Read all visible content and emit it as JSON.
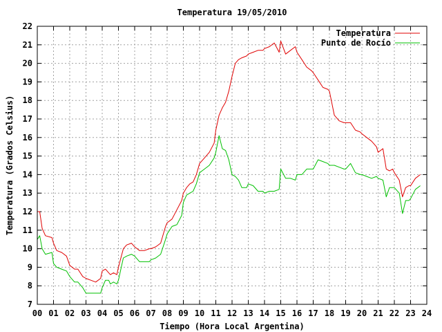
{
  "chart_data": {
    "type": "line",
    "title": "Temperatura 19/05/2010",
    "xlabel": "Tiempo (Hora Local Argentina)",
    "ylabel": "Temperatura (Grados Celsius)",
    "xlim": [
      0,
      24
    ],
    "ylim": [
      7,
      22
    ],
    "x_ticks": [
      "00",
      "01",
      "02",
      "03",
      "04",
      "05",
      "06",
      "07",
      "08",
      "09",
      "10",
      "11",
      "12",
      "13",
      "14",
      "15",
      "16",
      "17",
      "18",
      "19",
      "20",
      "21",
      "22",
      "23",
      "24"
    ],
    "y_ticks": [
      7,
      8,
      9,
      10,
      11,
      12,
      13,
      14,
      15,
      16,
      17,
      18,
      19,
      20,
      21,
      22
    ],
    "grid": true,
    "legend_position": "top-right",
    "series": [
      {
        "name": "Temperatura",
        "color": "#e00000",
        "x": [
          0,
          0.15,
          0.3,
          0.5,
          0.9,
          1.0,
          1.2,
          1.5,
          1.8,
          2.0,
          2.3,
          2.5,
          2.8,
          3.0,
          3.3,
          3.6,
          3.9,
          4.0,
          4.2,
          4.4,
          4.5,
          4.7,
          4.9,
          5.0,
          5.15,
          5.3,
          5.5,
          5.8,
          6.0,
          6.3,
          6.6,
          6.9,
          7.0,
          7.3,
          7.6,
          7.9,
          8.0,
          8.3,
          8.6,
          8.9,
          9.0,
          9.2,
          9.4,
          9.6,
          9.8,
          10.0,
          10.3,
          10.6,
          10.9,
          11.0,
          11.2,
          11.4,
          11.6,
          11.8,
          12.0,
          12.2,
          12.4,
          12.6,
          12.9,
          13.0,
          13.3,
          13.6,
          13.9,
          14.0,
          14.3,
          14.6,
          14.9,
          15.0,
          15.3,
          15.6,
          15.9,
          16.0,
          16.3,
          16.6,
          16.9,
          17.0,
          17.3,
          17.6,
          17.9,
          18.0,
          18.3,
          18.6,
          18.9,
          19.0,
          19.3,
          19.6,
          19.9,
          20.0,
          20.3,
          20.6,
          20.9,
          21.0,
          21.3,
          21.5,
          21.7,
          21.9,
          22.0,
          22.3,
          22.5,
          22.7,
          22.9,
          23.0,
          23.3,
          23.6
        ],
        "values": [
          12.0,
          12.0,
          11.1,
          10.7,
          10.6,
          10.3,
          9.9,
          9.8,
          9.6,
          9.1,
          8.9,
          8.9,
          8.5,
          8.4,
          8.3,
          8.2,
          8.4,
          8.8,
          8.9,
          8.7,
          8.6,
          8.7,
          8.6,
          9.0,
          9.5,
          10.0,
          10.2,
          10.3,
          10.1,
          9.9,
          9.9,
          10.0,
          10.0,
          10.1,
          10.3,
          11.2,
          11.4,
          11.6,
          12.1,
          12.6,
          13.0,
          13.3,
          13.5,
          13.6,
          14.0,
          14.6,
          14.9,
          15.2,
          15.7,
          16.4,
          17.2,
          17.6,
          17.9,
          18.5,
          19.3,
          20.0,
          20.2,
          20.3,
          20.4,
          20.5,
          20.6,
          20.7,
          20.7,
          20.8,
          20.9,
          21.1,
          20.6,
          21.2,
          20.5,
          20.7,
          20.9,
          20.6,
          20.2,
          19.8,
          19.6,
          19.5,
          19.1,
          18.7,
          18.6,
          18.5,
          17.2,
          16.9,
          16.8,
          16.8,
          16.8,
          16.4,
          16.3,
          16.2,
          16.0,
          15.8,
          15.5,
          15.2,
          15.4,
          14.3,
          14.2,
          14.3,
          14.1,
          13.7,
          12.8,
          13.3,
          13.4,
          13.4,
          13.8,
          14.0
        ]
      },
      {
        "name": "Punto de Rocío",
        "color": "#00c000",
        "x": [
          0,
          0.15,
          0.3,
          0.5,
          0.9,
          1.0,
          1.2,
          1.5,
          1.8,
          2.0,
          2.3,
          2.5,
          2.8,
          3.0,
          3.3,
          3.6,
          3.9,
          4.0,
          4.2,
          4.4,
          4.5,
          4.7,
          4.9,
          5.0,
          5.15,
          5.3,
          5.5,
          5.8,
          6.0,
          6.3,
          6.6,
          6.9,
          7.0,
          7.3,
          7.6,
          7.9,
          8.0,
          8.3,
          8.6,
          8.9,
          9.0,
          9.2,
          9.4,
          9.6,
          9.8,
          10.0,
          10.3,
          10.6,
          10.9,
          11.0,
          11.2,
          11.4,
          11.6,
          11.8,
          12.0,
          12.2,
          12.4,
          12.6,
          12.9,
          13.0,
          13.3,
          13.6,
          13.9,
          14.0,
          14.3,
          14.6,
          14.9,
          15.0,
          15.3,
          15.6,
          15.9,
          16.0,
          16.3,
          16.6,
          16.9,
          17.0,
          17.3,
          17.6,
          17.9,
          18.0,
          18.3,
          18.6,
          18.9,
          19.0,
          19.3,
          19.6,
          19.9,
          20.0,
          20.3,
          20.6,
          20.9,
          21.0,
          21.3,
          21.5,
          21.7,
          21.9,
          22.0,
          22.3,
          22.5,
          22.7,
          22.9,
          23.0,
          23.3,
          23.6
        ],
        "values": [
          10.5,
          10.7,
          10.0,
          9.7,
          9.8,
          9.2,
          9.0,
          8.9,
          8.8,
          8.5,
          8.2,
          8.2,
          7.9,
          7.6,
          7.6,
          7.6,
          7.6,
          7.9,
          8.3,
          8.3,
          8.1,
          8.2,
          8.1,
          8.3,
          8.9,
          9.5,
          9.6,
          9.7,
          9.6,
          9.3,
          9.3,
          9.3,
          9.4,
          9.5,
          9.7,
          10.5,
          10.8,
          11.2,
          11.3,
          11.8,
          12.5,
          12.9,
          13.0,
          13.1,
          13.5,
          14.1,
          14.3,
          14.5,
          14.9,
          15.2,
          16.1,
          15.4,
          15.3,
          14.8,
          14.0,
          13.9,
          13.7,
          13.3,
          13.3,
          13.5,
          13.4,
          13.1,
          13.1,
          13.0,
          13.1,
          13.1,
          13.2,
          14.3,
          13.8,
          13.8,
          13.7,
          14.0,
          14.0,
          14.3,
          14.3,
          14.3,
          14.8,
          14.7,
          14.6,
          14.5,
          14.5,
          14.4,
          14.3,
          14.3,
          14.6,
          14.1,
          14.0,
          14.0,
          13.9,
          13.8,
          13.9,
          13.8,
          13.7,
          12.8,
          13.3,
          13.3,
          13.3,
          13.0,
          11.9,
          12.6,
          12.6,
          12.7,
          13.2,
          13.4
        ]
      }
    ]
  }
}
